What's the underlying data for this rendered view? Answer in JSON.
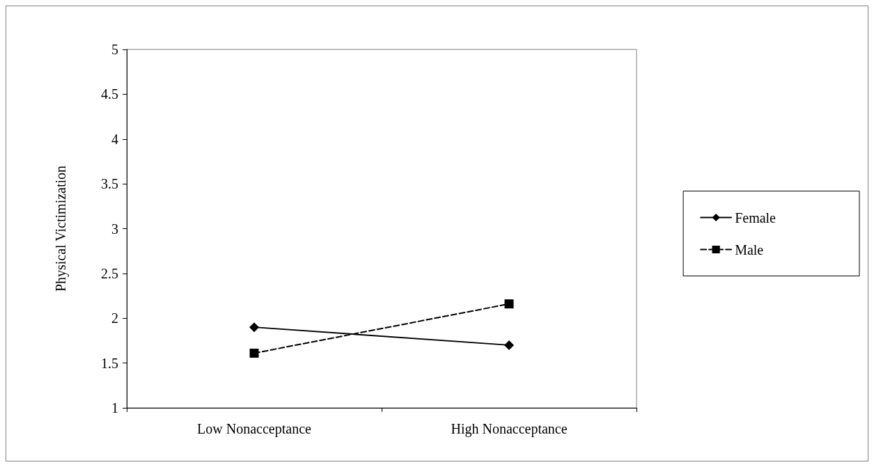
{
  "chart_data": {
    "type": "line",
    "ylabel": "Physical Victimization",
    "categories": [
      "Low Nonacceptance",
      "High Nonacceptance"
    ],
    "series": [
      {
        "name": "Female",
        "color": "#000000",
        "values": [
          1.9,
          1.7
        ],
        "marker": "diamond",
        "line_style": "solid"
      },
      {
        "name": "Male",
        "color": "#000000",
        "values": [
          1.61,
          2.16
        ],
        "marker": "square",
        "line_style": "dashed"
      }
    ],
    "ylim": [
      1,
      5
    ],
    "yticks": [
      1,
      1.5,
      2,
      2.5,
      3,
      3.5,
      4,
      4.5,
      5
    ],
    "grid": false,
    "legend": "right"
  }
}
